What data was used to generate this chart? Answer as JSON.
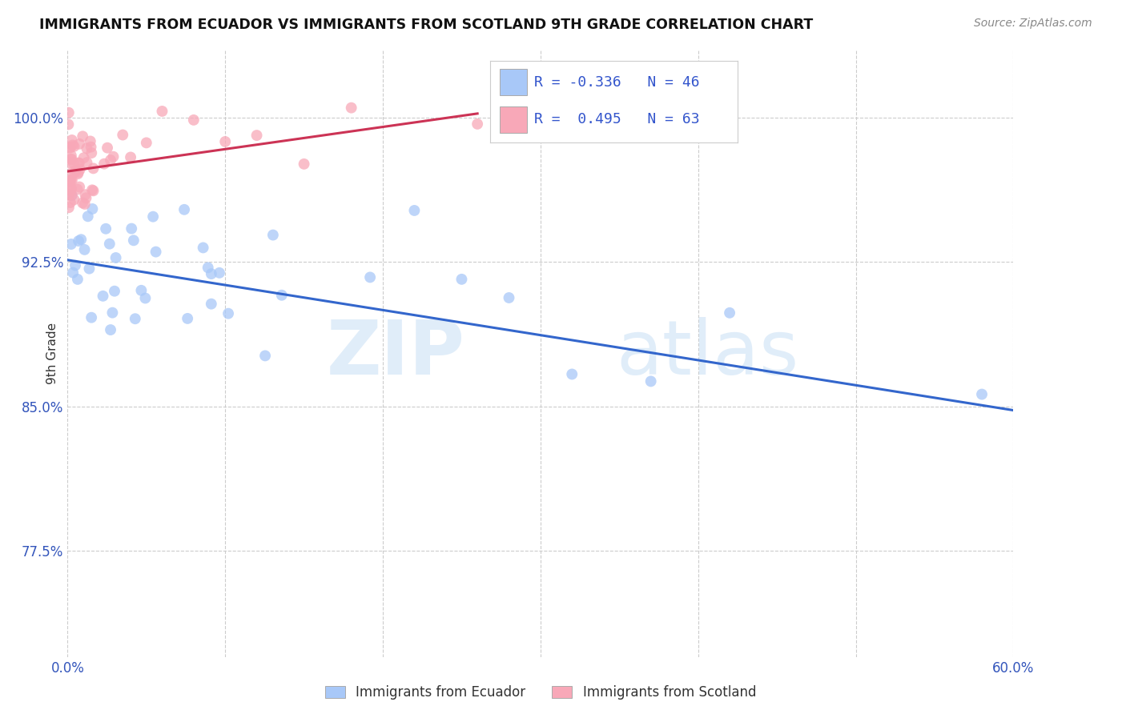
{
  "title": "IMMIGRANTS FROM ECUADOR VS IMMIGRANTS FROM SCOTLAND 9TH GRADE CORRELATION CHART",
  "source": "Source: ZipAtlas.com",
  "ylabel": "9th Grade",
  "ytick_labels": [
    "77.5%",
    "85.0%",
    "92.5%",
    "100.0%"
  ],
  "ytick_values": [
    0.775,
    0.85,
    0.925,
    1.0
  ],
  "xlim": [
    0.0,
    0.6
  ],
  "ylim": [
    0.72,
    1.035
  ],
  "legend_r_ecuador": "-0.336",
  "legend_n_ecuador": "46",
  "legend_r_scotland": "0.495",
  "legend_n_scotland": "63",
  "ecuador_color": "#a8c8f8",
  "scotland_color": "#f8a8b8",
  "ecuador_line_color": "#3366cc",
  "scotland_line_color": "#cc3355",
  "watermark_zip": "ZIP",
  "watermark_atlas": "atlas",
  "ecuador_line_x0": 0.0,
  "ecuador_line_y0": 0.926,
  "ecuador_line_x1": 0.6,
  "ecuador_line_y1": 0.848,
  "scotland_line_x0": 0.0,
  "scotland_line_y0": 0.972,
  "scotland_line_x1": 0.26,
  "scotland_line_y1": 1.002
}
